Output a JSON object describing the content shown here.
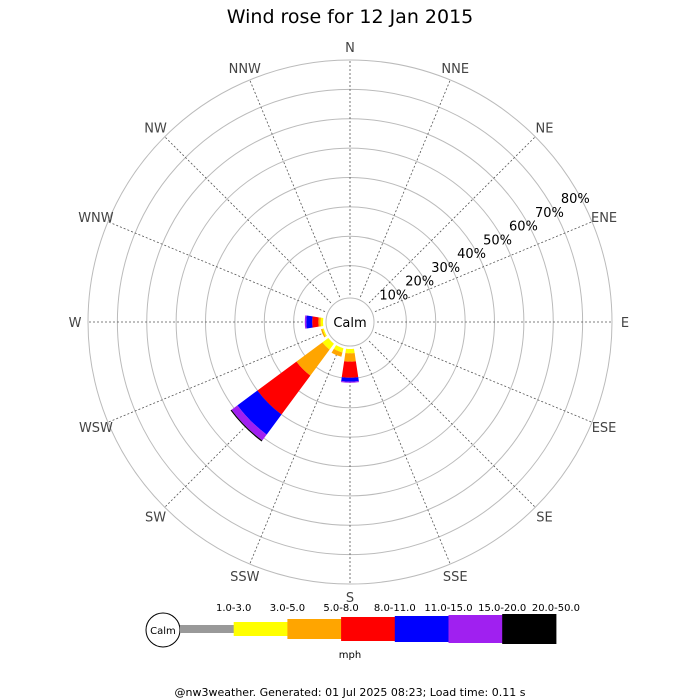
{
  "chart_data": {
    "type": "windrose",
    "title": "Wind rose for 12 Jan 2015",
    "directions": [
      "N",
      "NNE",
      "NE",
      "ENE",
      "E",
      "ESE",
      "SE",
      "SSE",
      "S",
      "SSW",
      "SW",
      "WSW",
      "W",
      "WNW",
      "NW",
      "NNW"
    ],
    "radial_ticks": [
      "10%",
      "20%",
      "30%",
      "40%",
      "50%",
      "60%",
      "70%",
      "80%"
    ],
    "radial_tick_values": [
      10,
      20,
      30,
      40,
      50,
      60,
      70,
      80
    ],
    "radial_max": 80,
    "calm_label": "Calm",
    "speed_bins": [
      {
        "label": "1.0-3.0",
        "color": "#999999"
      },
      {
        "label": "3.0-5.0",
        "color": "#ffff00"
      },
      {
        "label": "5.0-8.0",
        "color": "#ffa500"
      },
      {
        "label": "8.0-11.0",
        "color": "#ff0000"
      },
      {
        "label": "11.0-15.0",
        "color": "#0000ff"
      },
      {
        "label": "15.0-20.0",
        "color": "#a020f0"
      },
      {
        "label": "20.0-50.0",
        "color": "#000000"
      }
    ],
    "speed_unit": "mph",
    "series": [
      {
        "direction": "S",
        "segments": [
          0,
          1.5,
          2.8,
          5.5,
          1.3,
          0.4,
          0
        ]
      },
      {
        "direction": "SSW",
        "segments": [
          0,
          1.5,
          1.5,
          0,
          0,
          0,
          0
        ]
      },
      {
        "direction": "SW",
        "segments": [
          0,
          2.5,
          11.0,
          16.5,
          8.5,
          2.5,
          0.4
        ]
      },
      {
        "direction": "WSW",
        "segments": [
          0,
          0.5,
          0.5,
          0,
          0,
          0,
          0
        ]
      },
      {
        "direction": "W",
        "segments": [
          0,
          0.8,
          0.8,
          2.1,
          2.0,
          0.5,
          0
        ]
      }
    ]
  },
  "footer": "@nw3weather. Generated: 01 Jul 2025 08:23; Load time: 0.11 s"
}
